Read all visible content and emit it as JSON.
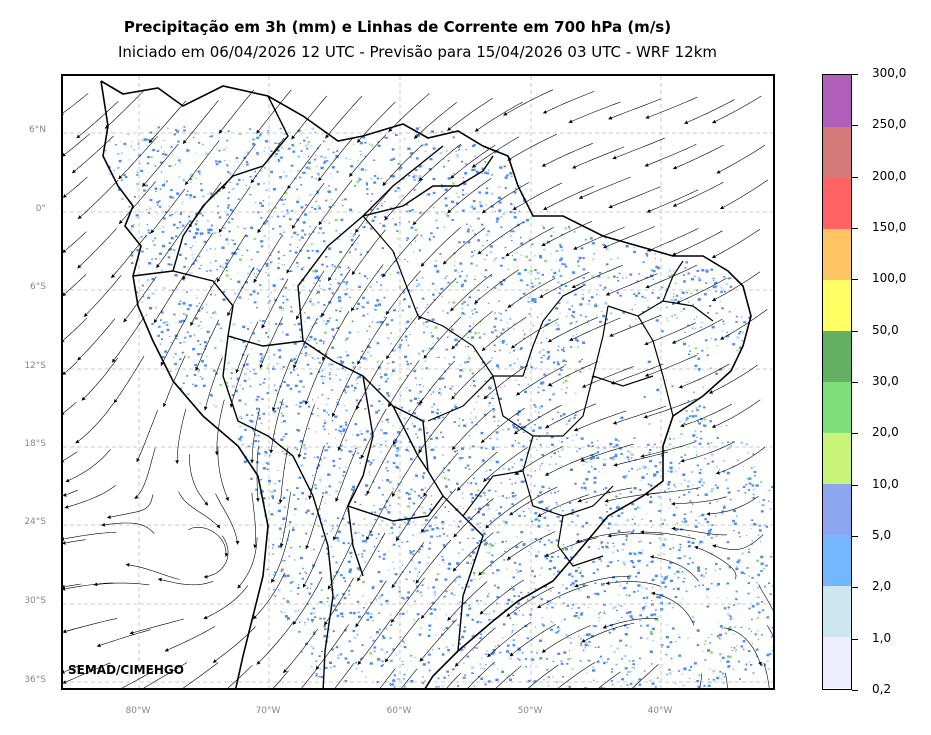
{
  "header": {
    "title": "Precipitação em 3h (mm) e Linhas de Corrente em 700 hPa (m/s)",
    "subtitle": "Iniciado em 06/04/2026 12 UTC - Previsão para 15/04/2026 03 UTC - WRF 12km"
  },
  "map": {
    "latitude_labels": [
      "6°N",
      "0°",
      "6°S",
      "12°S",
      "18°S",
      "24°S",
      "30°S",
      "36°S"
    ],
    "longitude_labels": [
      "80°W",
      "70°W",
      "60°W",
      "50°W",
      "40°W"
    ],
    "credit": "SEMAD/CIMEHGO",
    "colors": {
      "precip_main": "#4a8ef0",
      "precip_light": "#a8d8ff",
      "precip_green": "#8ae06a",
      "gridline": "#bbbbbb",
      "borders": "#000000"
    }
  },
  "colorbar": {
    "labels": [
      "0,2",
      "1,0",
      "2,0",
      "5,0",
      "10,0",
      "20,0",
      "30,0",
      "50,0",
      "100,0",
      "150,0",
      "200,0",
      "250,0",
      "300,0"
    ],
    "colors": [
      "#eeeefc",
      "#cde6f0",
      "#73b8ff",
      "#8ca6f0",
      "#c8f578",
      "#7ee07a",
      "#63b063",
      "#ffff63",
      "#ffc463",
      "#ff6363",
      "#d47a7a",
      "#b060b8"
    ]
  }
}
